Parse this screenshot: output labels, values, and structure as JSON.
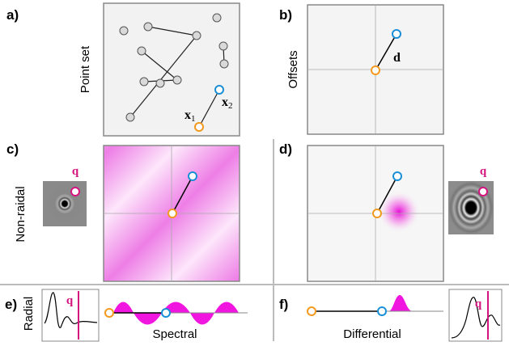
{
  "panels": [
    {
      "label": "a)",
      "caption": "Point set"
    },
    {
      "label": "b)",
      "caption": "Offsets"
    },
    {
      "label": "c)",
      "caption": "Non-raidal"
    },
    {
      "label": "d)"
    },
    {
      "label": "e)",
      "caption": "Radial",
      "subcaption": "Spectral"
    },
    {
      "label": "f)",
      "subcaption": "Differential"
    }
  ],
  "symbols": {
    "x1": {
      "base": "x",
      "sub": "1"
    },
    "x2": {
      "base": "x",
      "sub": "2"
    },
    "d": "d",
    "q": "q"
  }
}
